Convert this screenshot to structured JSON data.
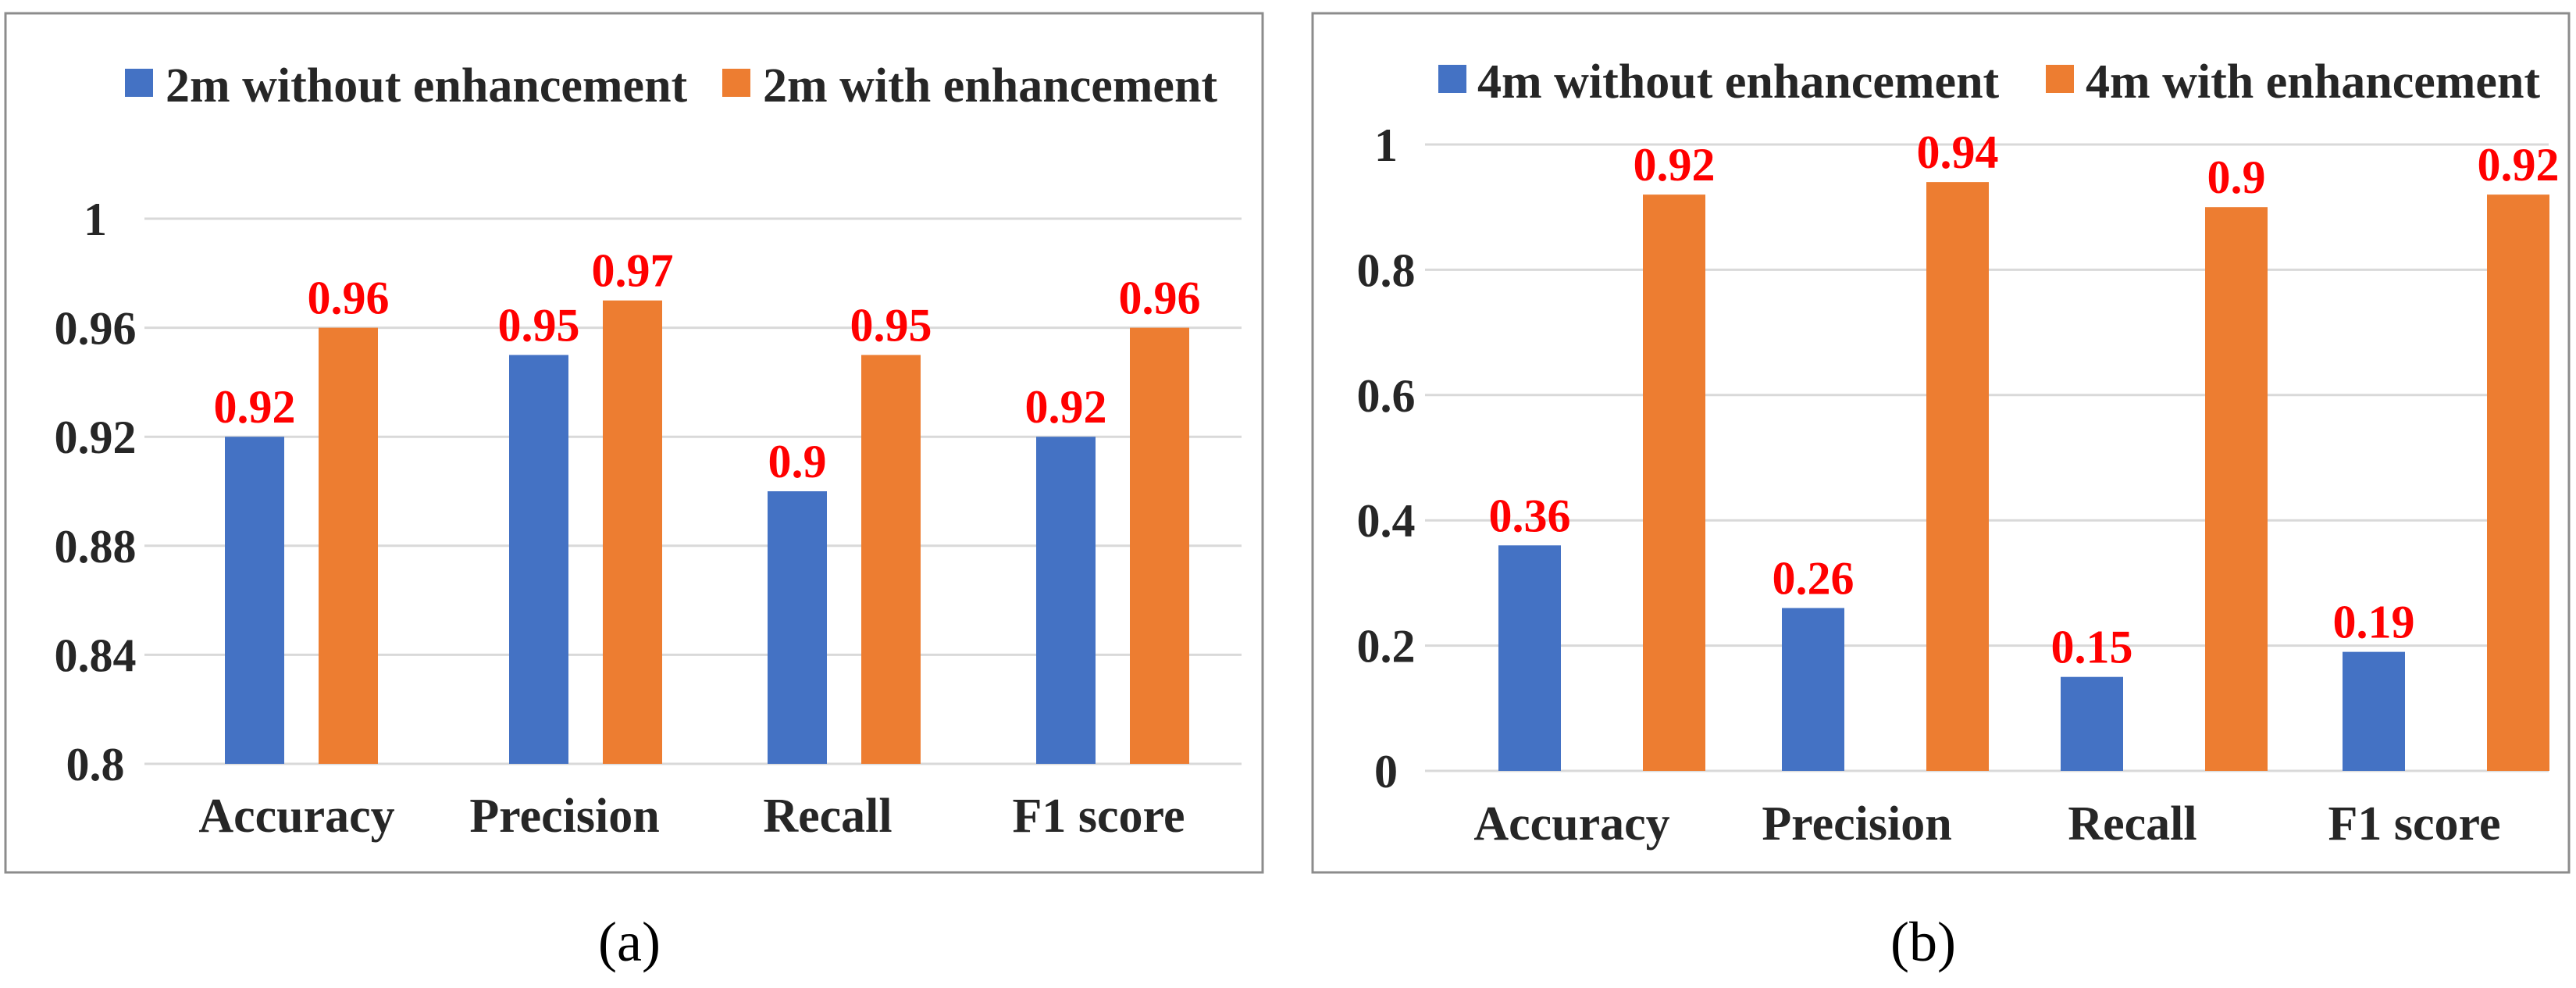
{
  "colors": {
    "series_without": "#4472c4",
    "series_with": "#ed7d31",
    "data_label": "#ff0000"
  },
  "chart_data": [
    {
      "id": "a",
      "type": "bar",
      "caption": "(a)",
      "categories": [
        "Accuracy",
        "Precision",
        "Recall",
        "F1 score"
      ],
      "series": [
        {
          "name": "2m without enhancement",
          "values": [
            0.92,
            0.95,
            0.9,
            0.92
          ],
          "labels": [
            "0.92",
            "0.95",
            "0.9",
            "0.92"
          ]
        },
        {
          "name": "2m with enhancement",
          "values": [
            0.96,
            0.97,
            0.95,
            0.96
          ],
          "labels": [
            "0.96",
            "0.97",
            "0.95",
            "0.96"
          ]
        }
      ],
      "ylim": [
        0.8,
        1.0
      ],
      "yticks": [
        0.8,
        0.84,
        0.88,
        0.92,
        0.96,
        1.0
      ],
      "ytick_labels": [
        "0.8",
        "0.84",
        "0.88",
        "0.92",
        "0.96",
        "1"
      ],
      "grid": true,
      "legend": "top"
    },
    {
      "id": "b",
      "type": "bar",
      "caption": "(b)",
      "categories": [
        "Accuracy",
        "Precision",
        "Recall",
        "F1 score"
      ],
      "series": [
        {
          "name": "4m without enhancement",
          "values": [
            0.36,
            0.26,
            0.15,
            0.19
          ],
          "labels": [
            "0.36",
            "0.26",
            "0.15",
            "0.19"
          ]
        },
        {
          "name": "4m with enhancement",
          "values": [
            0.92,
            0.94,
            0.9,
            0.92
          ],
          "labels": [
            "0.92",
            "0.94",
            "0.9",
            "0.92"
          ]
        }
      ],
      "ylim": [
        0,
        1.0
      ],
      "yticks": [
        0,
        0.2,
        0.4,
        0.6,
        0.8,
        1.0
      ],
      "ytick_labels": [
        "0",
        "0.2",
        "0.4",
        "0.6",
        "0.8",
        "1"
      ],
      "grid": true,
      "legend": "top"
    }
  ]
}
